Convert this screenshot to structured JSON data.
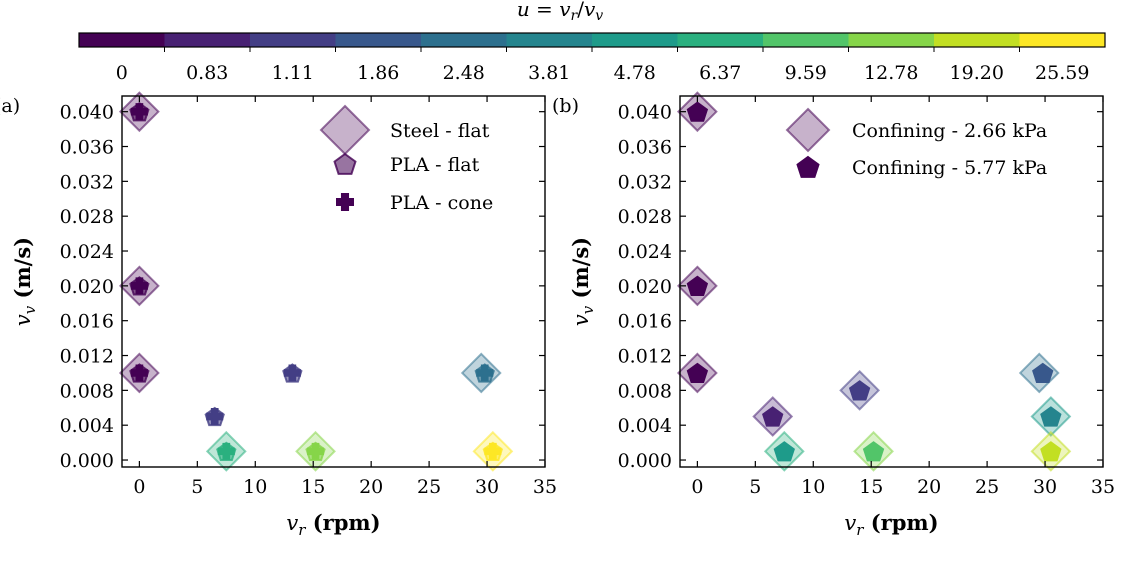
{
  "colorbar": {
    "title": "u = v_r / v_v",
    "title_parts": {
      "u": "u",
      "eq": " = ",
      "vr": "v",
      "vr_sub": "r",
      "slash": "/",
      "vv": "v",
      "vv_sub": "v"
    },
    "labels": [
      "0",
      "0.83",
      "1.11",
      "1.86",
      "2.48",
      "3.81",
      "4.78",
      "6.37",
      "9.59",
      "12.78",
      "19.20",
      "25.59"
    ],
    "colors": [
      "#440154",
      "#482173",
      "#433e85",
      "#38588c",
      "#2d708e",
      "#25858e",
      "#1e9b8a",
      "#2ab07f",
      "#52c569",
      "#86d549",
      "#c2df23",
      "#fde725"
    ]
  },
  "chart_data": [
    {
      "type": "scatter",
      "panel_label": "(a)",
      "xlabel_var": "v",
      "xlabel_sub": "r",
      "xlabel_unit": " (rpm)",
      "ylabel_var": "v",
      "ylabel_sub": "v",
      "ylabel_unit": " (m/s)",
      "xlim": [
        -1.5,
        35
      ],
      "ylim": [
        -0.0008,
        0.0418
      ],
      "xticks": [
        0,
        5,
        10,
        15,
        20,
        25,
        30,
        35
      ],
      "xtick_labels": [
        "0",
        "5",
        "10",
        "15",
        "20",
        "25",
        "30",
        "35"
      ],
      "yticks": [
        0.0,
        0.004,
        0.008,
        0.012,
        0.016,
        0.02,
        0.024,
        0.028,
        0.032,
        0.036,
        0.04
      ],
      "ytick_labels": [
        "0.000",
        "0.004",
        "0.008",
        "0.012",
        "0.016",
        "0.020",
        "0.024",
        "0.028",
        "0.032",
        "0.036",
        "0.040"
      ],
      "legend_position": "top-right",
      "series": [
        {
          "name": "Steel - flat",
          "marker": "diamond",
          "alpha": 0.3,
          "points": [
            {
              "x": 0,
              "y": 0.04,
              "u": "0"
            },
            {
              "x": 0,
              "y": 0.02,
              "u": "0"
            },
            {
              "x": 0,
              "y": 0.01,
              "u": "0"
            },
            {
              "x": 7.5,
              "y": 0.001,
              "u": "6.37"
            },
            {
              "x": 15.2,
              "y": 0.001,
              "u": "12.78"
            },
            {
              "x": 29.5,
              "y": 0.01,
              "u": "2.48"
            },
            {
              "x": 30.5,
              "y": 0.001,
              "u": "25.59"
            }
          ]
        },
        {
          "name": "PLA - flat",
          "marker": "pentagon",
          "alpha": 0.55,
          "points": [
            {
              "x": 0,
              "y": 0.04,
              "u": "0"
            },
            {
              "x": 0,
              "y": 0.02,
              "u": "0"
            },
            {
              "x": 0,
              "y": 0.01,
              "u": "0"
            },
            {
              "x": 6.5,
              "y": 0.005,
              "u": "1.11"
            },
            {
              "x": 13.2,
              "y": 0.01,
              "u": "1.11"
            },
            {
              "x": 7.5,
              "y": 0.001,
              "u": "6.37"
            },
            {
              "x": 15.2,
              "y": 0.001,
              "u": "12.78"
            },
            {
              "x": 29.8,
              "y": 0.01,
              "u": "2.48"
            },
            {
              "x": 30.5,
              "y": 0.001,
              "u": "25.59"
            }
          ]
        },
        {
          "name": "PLA - cone",
          "marker": "plus",
          "alpha": 1.0,
          "points": [
            {
              "x": 0,
              "y": 0.04,
              "u": "0"
            },
            {
              "x": 0,
              "y": 0.02,
              "u": "0"
            },
            {
              "x": 0,
              "y": 0.01,
              "u": "0"
            },
            {
              "x": 6.5,
              "y": 0.005,
              "u": "1.11"
            },
            {
              "x": 13.2,
              "y": 0.01,
              "u": "1.11"
            },
            {
              "x": 7.5,
              "y": 0.001,
              "u": "6.37"
            },
            {
              "x": 15.2,
              "y": 0.001,
              "u": "12.78"
            },
            {
              "x": 29.8,
              "y": 0.01,
              "u": "2.48"
            },
            {
              "x": 30.5,
              "y": 0.001,
              "u": "25.59"
            }
          ]
        }
      ]
    },
    {
      "type": "scatter",
      "panel_label": "(b)",
      "xlabel_var": "v",
      "xlabel_sub": "r",
      "xlabel_unit": " (rpm)",
      "ylabel_var": "v",
      "ylabel_sub": "v",
      "ylabel_unit": " (m/s)",
      "xlim": [
        -1.5,
        35
      ],
      "ylim": [
        -0.0008,
        0.0418
      ],
      "xticks": [
        0,
        5,
        10,
        15,
        20,
        25,
        30,
        35
      ],
      "xtick_labels": [
        "0",
        "5",
        "10",
        "15",
        "20",
        "25",
        "30",
        "35"
      ],
      "yticks": [
        0.0,
        0.004,
        0.008,
        0.012,
        0.016,
        0.02,
        0.024,
        0.028,
        0.032,
        0.036,
        0.04
      ],
      "ytick_labels": [
        "0.000",
        "0.004",
        "0.008",
        "0.012",
        "0.016",
        "0.020",
        "0.024",
        "0.028",
        "0.032",
        "0.036",
        "0.040"
      ],
      "legend_position": "top-right",
      "series": [
        {
          "name": "Confining - 2.66 kPa",
          "marker": "diamond",
          "alpha": 0.3,
          "points": [
            {
              "x": 0,
              "y": 0.04,
              "u": "0"
            },
            {
              "x": 0,
              "y": 0.02,
              "u": "0"
            },
            {
              "x": 0,
              "y": 0.01,
              "u": "0"
            },
            {
              "x": 6.5,
              "y": 0.005,
              "u": "0.83"
            },
            {
              "x": 14,
              "y": 0.008,
              "u": "1.11"
            },
            {
              "x": 7.5,
              "y": 0.001,
              "u": "6.37"
            },
            {
              "x": 15.2,
              "y": 0.001,
              "u": "12.78"
            },
            {
              "x": 29.5,
              "y": 0.01,
              "u": "2.48"
            },
            {
              "x": 30.5,
              "y": 0.005,
              "u": "4.78"
            },
            {
              "x": 30.5,
              "y": 0.001,
              "u": "19.20"
            }
          ]
        },
        {
          "name": "Confining - 5.77 kPa",
          "marker": "pentagon",
          "alpha": 1.0,
          "points": [
            {
              "x": 0,
              "y": 0.04,
              "u": "0"
            },
            {
              "x": 0,
              "y": 0.02,
              "u": "0"
            },
            {
              "x": 0,
              "y": 0.01,
              "u": "0"
            },
            {
              "x": 6.5,
              "y": 0.005,
              "u": "0.83"
            },
            {
              "x": 14,
              "y": 0.008,
              "u": "1.11"
            },
            {
              "x": 7.5,
              "y": 0.001,
              "u": "4.78"
            },
            {
              "x": 15.2,
              "y": 0.001,
              "u": "9.59"
            },
            {
              "x": 29.8,
              "y": 0.01,
              "u": "1.86"
            },
            {
              "x": 30.5,
              "y": 0.005,
              "u": "3.81"
            },
            {
              "x": 30.5,
              "y": 0.001,
              "u": "19.20"
            }
          ]
        }
      ]
    }
  ]
}
